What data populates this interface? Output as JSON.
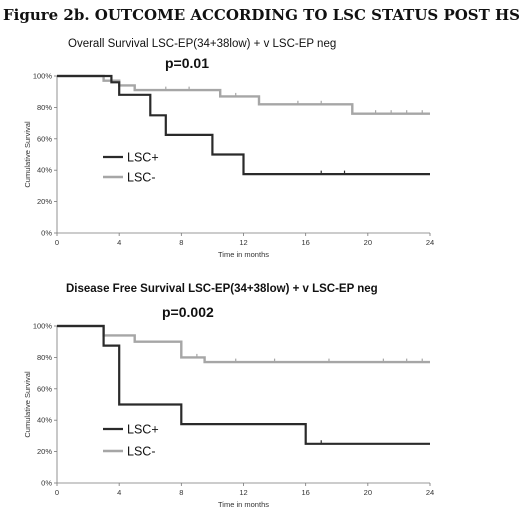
{
  "figure_title": "Figure 2b. OUTCOME ACCORDING TO LSC STATUS POST HSCT",
  "colors": {
    "lsc_pos": "#2a2a2a",
    "lsc_neg": "#a6a6a6",
    "axis": "#777777"
  },
  "chart_data": [
    {
      "type": "line",
      "title": "Overall Survival LSC-EP(34+38low) + v LSC-EP neg",
      "title_bold": false,
      "pvalue": "p=0.01",
      "xlabel": "Time in months",
      "ylabel": "Cumulative Survival",
      "xlim": [
        0,
        24
      ],
      "ylim": [
        0,
        100
      ],
      "x_ticks": [
        0,
        4,
        8,
        12,
        16,
        20,
        24
      ],
      "x_tick_labels": [
        "0",
        "4",
        "8",
        "12",
        "16",
        "20",
        "24"
      ],
      "y_ticks": [
        0,
        20,
        40,
        60,
        80,
        100
      ],
      "y_tick_labels": [
        "0%",
        "20%",
        "40%",
        "60%",
        "80%",
        "100%"
      ],
      "legend_position": "center-left",
      "series": [
        {
          "name": "LSC+",
          "color": "#2a2a2a",
          "steps": [
            [
              0,
              100
            ],
            [
              3.5,
              100
            ],
            [
              3.5,
              96
            ],
            [
              4,
              96
            ],
            [
              4,
              88
            ],
            [
              6,
              88
            ],
            [
              6,
              75
            ],
            [
              7,
              75
            ],
            [
              7,
              62.5
            ],
            [
              10,
              62.5
            ],
            [
              10,
              50
            ],
            [
              12,
              50
            ],
            [
              12,
              37.5
            ],
            [
              24,
              37.5
            ]
          ],
          "censored": [
            [
              17,
              37.5
            ],
            [
              18.5,
              37.5
            ]
          ]
        },
        {
          "name": "LSC-",
          "color": "#a6a6a6",
          "steps": [
            [
              0,
              100
            ],
            [
              3,
              100
            ],
            [
              3,
              97
            ],
            [
              4,
              97
            ],
            [
              4,
              94
            ],
            [
              5,
              94
            ],
            [
              5,
              91
            ],
            [
              10.5,
              91
            ],
            [
              10.5,
              87
            ],
            [
              13,
              87
            ],
            [
              13,
              82
            ],
            [
              19,
              82
            ],
            [
              19,
              76
            ],
            [
              24,
              76
            ]
          ],
          "censored": [
            [
              7,
              91
            ],
            [
              8.5,
              91
            ],
            [
              11.5,
              87
            ],
            [
              15.5,
              82
            ],
            [
              17,
              82
            ],
            [
              20.5,
              76
            ],
            [
              21.5,
              76
            ],
            [
              22.5,
              76
            ],
            [
              23.5,
              76
            ]
          ]
        }
      ]
    },
    {
      "type": "line",
      "title": "Disease Free Survival   LSC-EP(34+38low) + v LSC-EP neg",
      "title_bold": true,
      "pvalue": "p=0.002",
      "xlabel": "Time in months",
      "ylabel": "Cumulative Survival",
      "xlim": [
        0,
        24
      ],
      "ylim": [
        0,
        100
      ],
      "x_ticks": [
        0,
        4,
        8,
        12,
        16,
        20,
        24
      ],
      "x_tick_labels": [
        "0",
        "4",
        "8",
        "12",
        "16",
        "20",
        "24"
      ],
      "y_ticks": [
        0,
        20,
        40,
        60,
        80,
        100
      ],
      "y_tick_labels": [
        "0%",
        "20%",
        "40%",
        "60%",
        "80%",
        "100%"
      ],
      "legend_position": "bottom-left",
      "series": [
        {
          "name": "LSC+",
          "color": "#2a2a2a",
          "steps": [
            [
              0,
              100
            ],
            [
              3,
              100
            ],
            [
              3,
              87.5
            ],
            [
              4,
              87.5
            ],
            [
              4,
              50
            ],
            [
              8,
              50
            ],
            [
              8,
              37.5
            ],
            [
              16,
              37.5
            ],
            [
              16,
              25
            ],
            [
              24,
              25
            ]
          ],
          "censored": [
            [
              17,
              25
            ]
          ]
        },
        {
          "name": "LSC-",
          "color": "#a6a6a6",
          "steps": [
            [
              0,
              100
            ],
            [
              3,
              100
            ],
            [
              3,
              94
            ],
            [
              5,
              94
            ],
            [
              5,
              90
            ],
            [
              8,
              90
            ],
            [
              8,
              80
            ],
            [
              9.5,
              80
            ],
            [
              9.5,
              77
            ],
            [
              24,
              77
            ]
          ],
          "censored": [
            [
              9,
              80
            ],
            [
              11.5,
              77
            ],
            [
              14,
              77
            ],
            [
              17.5,
              77
            ],
            [
              21,
              77
            ],
            [
              22.5,
              77
            ],
            [
              23.5,
              77
            ]
          ]
        }
      ]
    }
  ]
}
